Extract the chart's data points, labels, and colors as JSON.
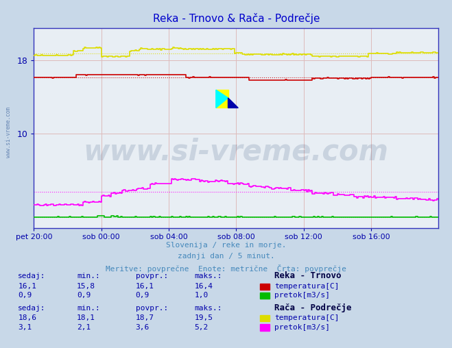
{
  "title": "Reka - Trnovo & Rača - Podrečje",
  "title_color": "#0000cc",
  "bg_color": "#c8d8e8",
  "plot_bg_color": "#e8eef4",
  "grid_major_color": "#cc9999",
  "grid_minor_color": "#ddcccc",
  "axis_color": "#3333bb",
  "tick_label_color": "#0000aa",
  "subtitle_lines": [
    "Slovenija / reke in morje.",
    "zadnji dan / 5 minut.",
    "Meritve: povprečne  Enote: metrične  Črta: povprečje"
  ],
  "subtitle_color": "#4488bb",
  "xlabel_ticks": [
    "pet 20:00",
    "sob 00:00",
    "sob 04:00",
    "sob 08:00",
    "sob 12:00",
    "sob 16:00"
  ],
  "ytick_labels": [
    "10",
    "18"
  ],
  "ytick_values": [
    10,
    18
  ],
  "ylim": [
    -0.3,
    21.5
  ],
  "xlim": [
    0,
    288
  ],
  "tick_positions": [
    0,
    48,
    96,
    144,
    192,
    240
  ],
  "watermark_text": "www.si-vreme.com",
  "watermark_color": "#1a3a6a",
  "watermark_alpha": 0.15,
  "legend": {
    "reka_name": "Reka - Trnovo",
    "raca_name": "Rača - Podrečje",
    "reka_temp_color": "#cc0000",
    "reka_pretok_color": "#00bb00",
    "raca_temp_color": "#dddd00",
    "raca_pretok_color": "#ff00ff",
    "label_color": "#0000aa",
    "header_color": "#000044",
    "reka_sedaj": "16,1",
    "reka_min": "15,8",
    "reka_povpr": "16,1",
    "reka_maks": "16,4",
    "reka_pretok_sedaj": "0,9",
    "reka_pretok_min": "0,9",
    "reka_pretok_povpr": "0,9",
    "reka_pretok_maks": "1,0",
    "raca_sedaj": "18,6",
    "raca_min": "18,1",
    "raca_povpr": "18,7",
    "raca_maks": "19,5",
    "raca_pretok_sedaj": "3,1",
    "raca_pretok_min": "2,1",
    "raca_pretok_povpr": "3,6",
    "raca_pretok_maks": "5,2"
  },
  "avg_reka_temp": 16.1,
  "avg_raca_temp": 18.7,
  "avg_raca_pretok": 3.6,
  "avg_reka_pretok": 0.9,
  "reka_temp_color": "#cc0000",
  "reka_pretok_color": "#00bb00",
  "raca_temp_color": "#dddd00",
  "raca_pretok_color": "#ff00ff",
  "n_points": 289
}
